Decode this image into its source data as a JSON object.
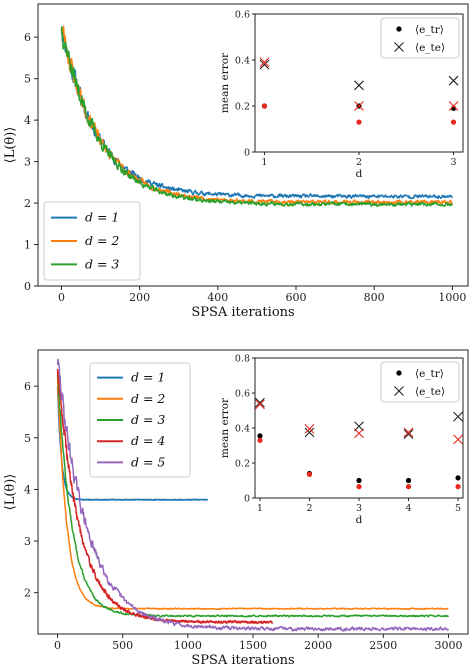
{
  "chart_data": [
    {
      "type": "line",
      "xlabel": "SPSA iterations",
      "ylabel": "⟨L(θ)⟩",
      "xlim": [
        -60,
        1040
      ],
      "ylim": [
        0,
        6.8
      ],
      "xticks": [
        0,
        200,
        400,
        600,
        800,
        1000
      ],
      "yticks": [
        0,
        1,
        2,
        3,
        4,
        5,
        6
      ],
      "legend": "lower-left",
      "series": [
        {
          "name": "d = 1",
          "color": "#1f77b4",
          "start": 6.3,
          "final": 2.16,
          "decay": 90,
          "noise": 0.22,
          "seed": 11
        },
        {
          "name": "d = 2",
          "color": "#ff7f0e",
          "start": 6.3,
          "final": 2.02,
          "decay": 95,
          "noise": 0.22,
          "seed": 23
        },
        {
          "name": "d = 3",
          "color": "#2ca02c",
          "start": 6.3,
          "final": 1.97,
          "decay": 95,
          "noise": 0.22,
          "seed": 37
        }
      ],
      "inset": {
        "ylabel": "mean error",
        "xlabel": "d",
        "xticks": [
          1,
          2,
          3
        ],
        "yticks": [
          0.0,
          0.2,
          0.4,
          0.6
        ],
        "ylim": [
          0,
          0.6
        ],
        "legend": "top-right",
        "legend_tr": "⟨e_tr⟩",
        "legend_te": "⟨e_te⟩",
        "d": [
          1,
          2,
          3
        ],
        "train_black": [
          0.2,
          0.2,
          0.19
        ],
        "test_black": [
          0.38,
          0.29,
          0.31
        ],
        "train_red": [
          0.2,
          0.13,
          0.13
        ],
        "test_red": [
          0.39,
          0.2,
          0.2
        ]
      }
    },
    {
      "type": "line",
      "xlabel": "SPSA iterations",
      "ylabel": "⟨L(θ)⟩",
      "xlim": [
        -150,
        3150
      ],
      "ylim": [
        1.2,
        6.7
      ],
      "xticks": [
        0,
        500,
        1000,
        1500,
        2000,
        2500,
        3000
      ],
      "yticks": [
        2,
        3,
        4,
        5,
        6
      ],
      "legend": "top-left",
      "series": [
        {
          "name": "d = 1",
          "color": "#1f77b4",
          "start": 6.0,
          "final": 3.8,
          "decay": 30,
          "noise": 0.04,
          "seed": 5,
          "xmax": 1150
        },
        {
          "name": "d = 2",
          "color": "#ff7f0e",
          "start": 6.2,
          "final": 1.69,
          "decay": 70,
          "noise": 0.05,
          "seed": 8,
          "xmax": 3000
        },
        {
          "name": "d = 3",
          "color": "#2ca02c",
          "start": 6.3,
          "final": 1.55,
          "decay": 110,
          "noise": 0.08,
          "seed": 13,
          "xmax": 3000
        },
        {
          "name": "d = 4",
          "color": "#d62728",
          "start": 6.4,
          "final": 1.43,
          "decay": 170,
          "noise": 0.12,
          "seed": 19,
          "xmax": 1650
        },
        {
          "name": "d = 5",
          "color": "#9467bd",
          "start": 6.5,
          "final": 1.3,
          "decay": 230,
          "noise": 0.16,
          "seed": 29,
          "xmax": 3000
        }
      ],
      "inset": {
        "ylabel": "mean error",
        "xlabel": "d",
        "xticks": [
          1,
          2,
          3,
          4,
          5
        ],
        "yticks": [
          0.0,
          0.2,
          0.4,
          0.6,
          0.8
        ],
        "ylim": [
          0,
          0.8
        ],
        "legend": "top-right",
        "legend_tr": "⟨e_tr⟩",
        "legend_te": "⟨e_te⟩",
        "d": [
          1,
          2,
          3,
          4,
          5
        ],
        "train_black": [
          0.355,
          0.14,
          0.1,
          0.1,
          0.115
        ],
        "test_black": [
          0.545,
          0.375,
          0.41,
          0.365,
          0.465
        ],
        "train_red": [
          0.33,
          0.135,
          0.065,
          0.065,
          0.065
        ],
        "test_red": [
          0.535,
          0.395,
          0.37,
          0.375,
          0.335
        ]
      }
    }
  ]
}
